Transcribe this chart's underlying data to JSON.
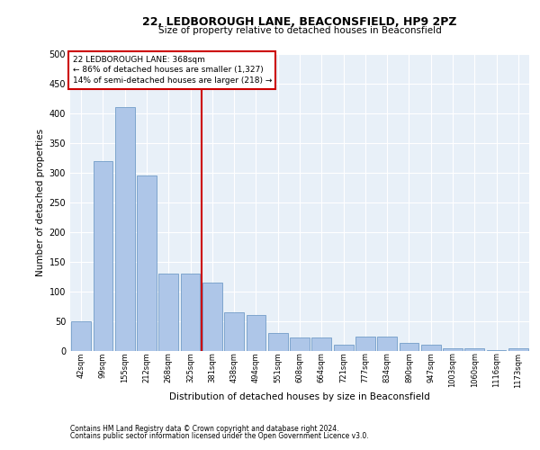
{
  "title": "22, LEDBOROUGH LANE, BEACONSFIELD, HP9 2PZ",
  "subtitle": "Size of property relative to detached houses in Beaconsfield",
  "xlabel": "Distribution of detached houses by size in Beaconsfield",
  "ylabel": "Number of detached properties",
  "footer_line1": "Contains HM Land Registry data © Crown copyright and database right 2024.",
  "footer_line2": "Contains public sector information licensed under the Open Government Licence v3.0.",
  "annotation_title": "22 LEDBOROUGH LANE: 368sqm",
  "annotation_line1": "← 86% of detached houses are smaller (1,327)",
  "annotation_line2": "14% of semi-detached houses are larger (218) →",
  "vline_index": 5.5,
  "categories": [
    "42sqm",
    "99sqm",
    "155sqm",
    "212sqm",
    "268sqm",
    "325sqm",
    "381sqm",
    "438sqm",
    "494sqm",
    "551sqm",
    "608sqm",
    "664sqm",
    "721sqm",
    "777sqm",
    "834sqm",
    "890sqm",
    "947sqm",
    "1003sqm",
    "1060sqm",
    "1116sqm",
    "1173sqm"
  ],
  "values": [
    50,
    320,
    410,
    295,
    130,
    130,
    115,
    65,
    60,
    30,
    22,
    22,
    10,
    25,
    25,
    14,
    10,
    5,
    4,
    2,
    5
  ],
  "bar_color": "#aec6e8",
  "bar_edge_color": "#6090c0",
  "vline_color": "#cc0000",
  "annotation_box_color": "#cc0000",
  "plot_bg_color": "#e8f0f8",
  "fig_bg_color": "#ffffff",
  "ylim": [
    0,
    500
  ],
  "yticks": [
    0,
    50,
    100,
    150,
    200,
    250,
    300,
    350,
    400,
    450,
    500
  ],
  "title_fontsize": 9,
  "subtitle_fontsize": 7.5,
  "xlabel_fontsize": 7.5,
  "ylabel_fontsize": 7.5,
  "xtick_fontsize": 6,
  "ytick_fontsize": 7,
  "footer_fontsize": 5.5,
  "annotation_fontsize": 6.5
}
